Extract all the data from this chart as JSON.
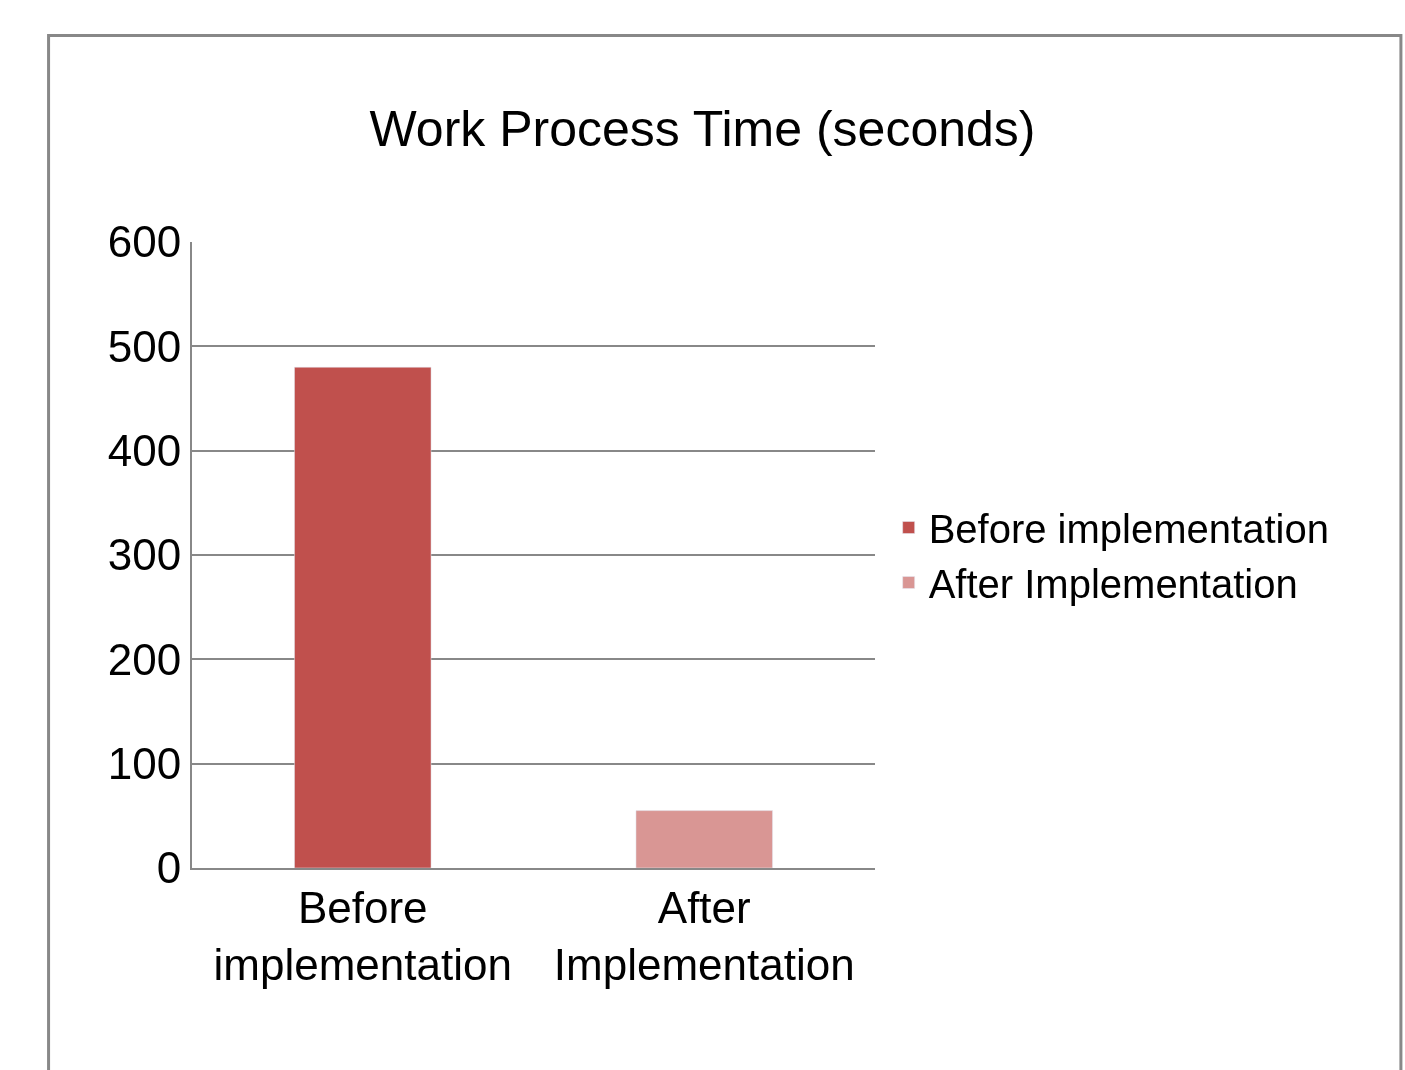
{
  "chart_data": {
    "type": "bar",
    "title": "Work Process Time (seconds)",
    "categories": [
      "Before implementation",
      "After Implementation"
    ],
    "series": [
      {
        "name": "Before implementation",
        "color": "#c0504d",
        "values": [
          480,
          null
        ]
      },
      {
        "name": "After Implementation",
        "color": "#d99694",
        "values": [
          null,
          55
        ]
      }
    ],
    "ylim": [
      0,
      600
    ],
    "yticks": [
      0,
      100,
      200,
      300,
      400,
      500,
      600
    ],
    "grid": "y",
    "legend": "right"
  }
}
